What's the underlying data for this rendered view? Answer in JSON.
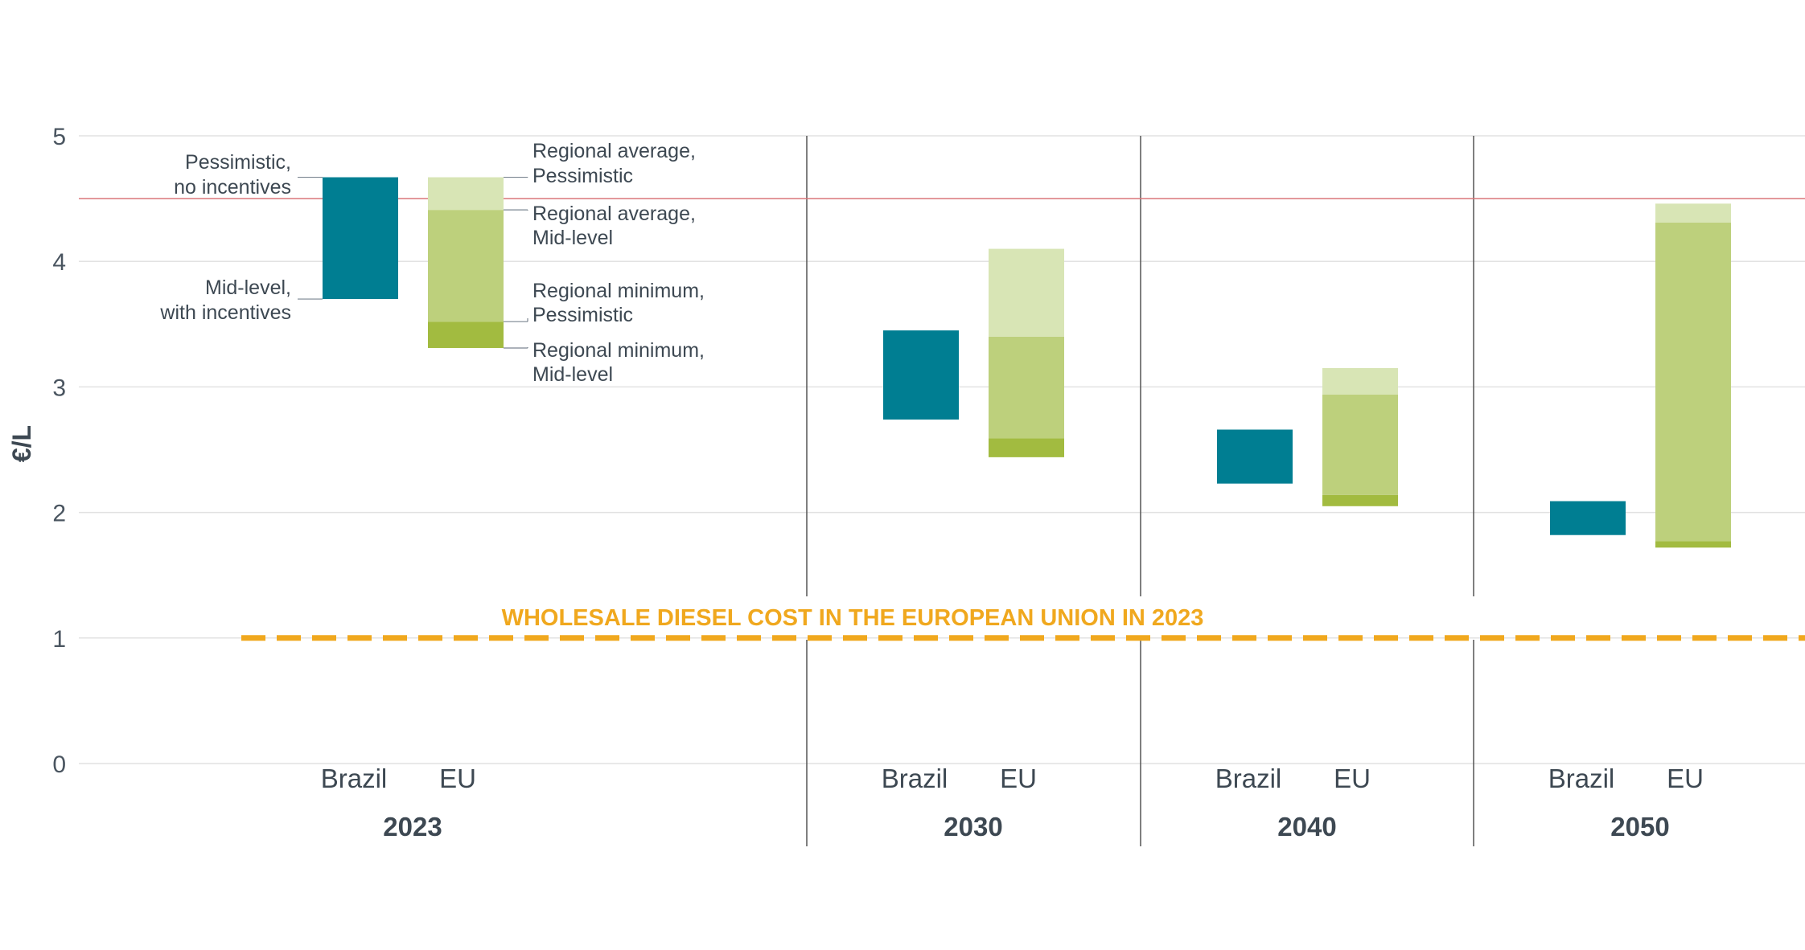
{
  "colors": {
    "brazil": "#007e92",
    "eu_avg_pessimistic": "#d8e5b5",
    "eu_avg_mid": "#bdd07c",
    "eu_min_pess": "#a2bb40",
    "grid": "#e2e2e2",
    "divider": "#555555",
    "threshold": "#d9767a",
    "reference": "#f0a81e",
    "text": "#3d4852"
  },
  "chart_data": {
    "type": "bar",
    "subtype": "floating-range-bar",
    "title": "",
    "ylabel": "€/L",
    "xlabel": "",
    "ylim": [
      0,
      5
    ],
    "yticks": [
      "0",
      "1",
      "2",
      "3",
      "4",
      "5"
    ],
    "grid": true,
    "groups": [
      {
        "year": "2023",
        "brazil": {
          "label": "Brazil",
          "low": 3.7,
          "high": 4.67
        },
        "eu": {
          "label": "EU",
          "min_mid": 3.31,
          "min_pess": 3.52,
          "avg_mid": 4.41,
          "avg_pess": 4.67
        }
      },
      {
        "year": "2030",
        "brazil": {
          "label": "Brazil",
          "low": 2.74,
          "high": 3.45
        },
        "eu": {
          "label": "EU",
          "min_mid": 2.44,
          "min_pess": 2.59,
          "avg_mid": 3.4,
          "avg_pess": 4.1
        }
      },
      {
        "year": "2040",
        "brazil": {
          "label": "Brazil",
          "low": 2.23,
          "high": 2.66
        },
        "eu": {
          "label": "EU",
          "min_mid": 2.05,
          "min_pess": 2.14,
          "avg_mid": 2.94,
          "avg_pess": 3.15
        }
      },
      {
        "year": "2050",
        "brazil": {
          "label": "Brazil",
          "low": 1.82,
          "high": 2.09
        },
        "eu": {
          "label": "EU",
          "min_mid": 1.72,
          "min_pess": 1.77,
          "avg_mid": 4.31,
          "avg_pess": 4.46
        }
      }
    ],
    "threshold_line": {
      "value": 4.5
    },
    "reference_line": {
      "value": 1.0,
      "label": "WHOLESALE DIESEL COST IN THE EUROPEAN UNION IN 2023"
    },
    "annotations": {
      "brazil_high": [
        "Pessimistic,",
        "no incentives"
      ],
      "brazil_low": [
        "Mid-level,",
        "with incentives"
      ],
      "eu_avg_pess": [
        "Regional average,",
        "Pessimistic"
      ],
      "eu_avg_mid": [
        "Regional average,",
        "Mid-level"
      ],
      "eu_min_pess": [
        "Regional minimum,",
        "Pessimistic"
      ],
      "eu_min_mid": [
        "Regional minimum,",
        "Mid-level"
      ]
    }
  }
}
